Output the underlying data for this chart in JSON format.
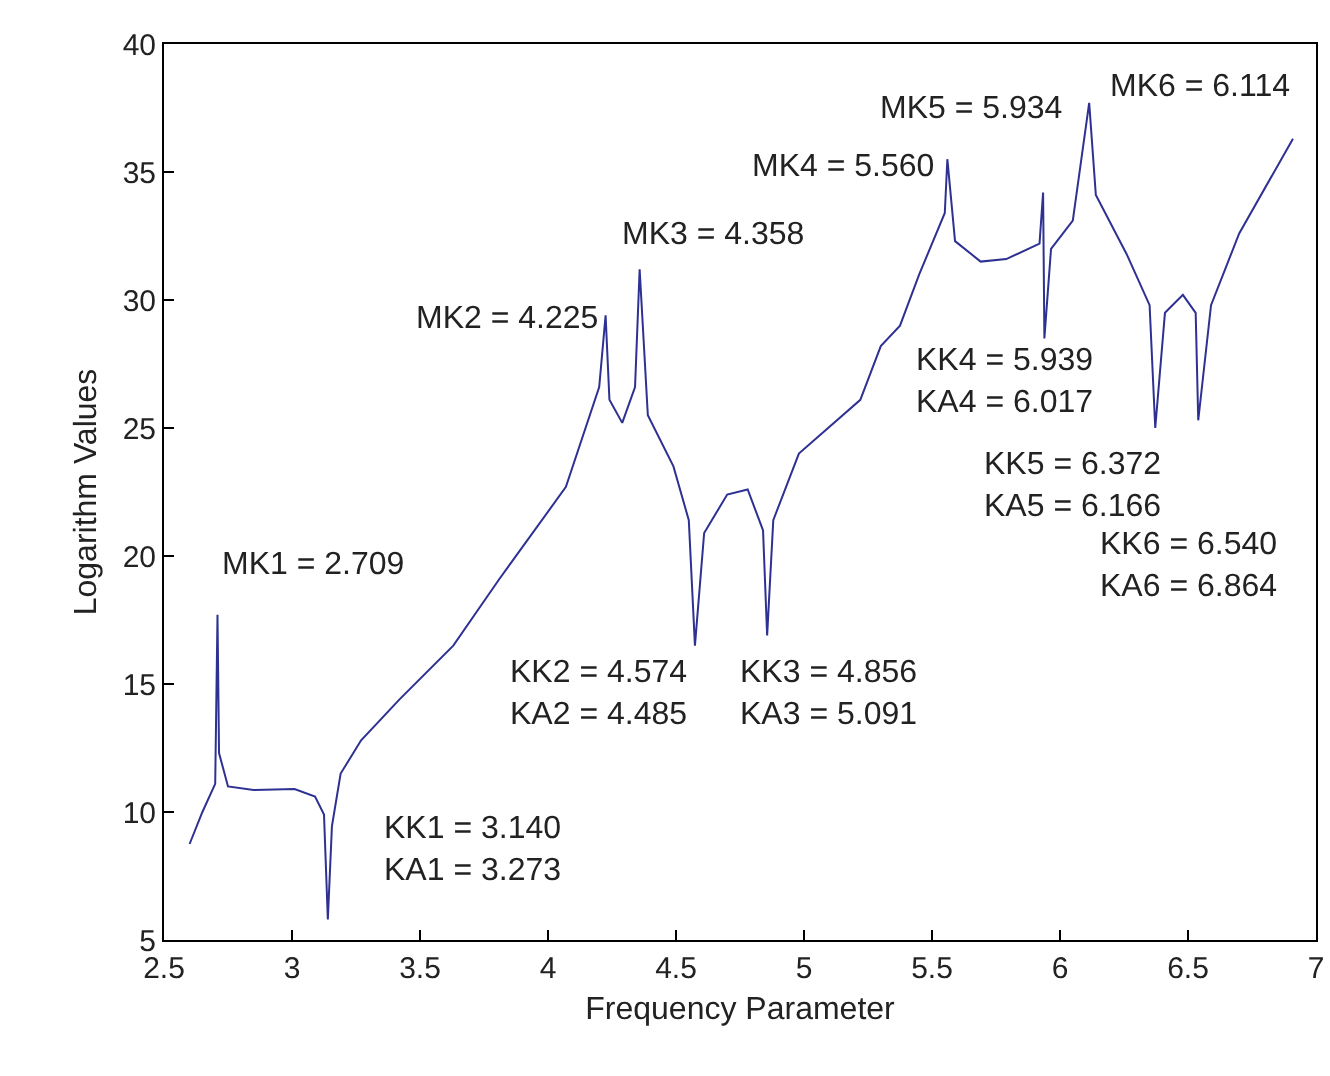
{
  "chart_data": {
    "type": "line",
    "xlabel": "Frequency Parameter",
    "ylabel": "Logarithm Values",
    "xlim": [
      2.5,
      7
    ],
    "xticks": [
      2.5,
      3,
      3.5,
      4,
      4.5,
      5,
      5.5,
      6,
      6.5,
      7
    ],
    "ylim": [
      5,
      40
    ],
    "yticks": [
      5,
      10,
      15,
      20,
      25,
      30,
      35,
      40
    ],
    "grid": false,
    "marker": "none",
    "line_style": "solid",
    "series": [
      {
        "color": "#2e3192",
        "x": [
          2.6,
          2.65,
          2.7,
          2.709,
          2.715,
          2.75,
          2.85,
          3.01,
          3.09,
          3.125,
          3.14,
          3.156,
          3.19,
          3.27,
          3.42,
          3.63,
          3.81,
          4.07,
          4.2,
          4.225,
          4.24,
          4.29,
          4.34,
          4.358,
          4.39,
          4.49,
          4.55,
          4.574,
          4.61,
          4.7,
          4.78,
          4.84,
          4.856,
          4.88,
          4.98,
          5.22,
          5.3,
          5.375,
          5.45,
          5.55,
          5.56,
          5.59,
          5.69,
          5.79,
          5.92,
          5.934,
          5.939,
          5.965,
          6.05,
          6.114,
          6.14,
          6.26,
          6.35,
          6.372,
          6.41,
          6.48,
          6.53,
          6.54,
          6.59,
          6.7,
          6.91
        ],
        "values": [
          8.75,
          10,
          11.1,
          17.7,
          12.3,
          11,
          10.86,
          10.9,
          10.6,
          9.9,
          5.8,
          9.45,
          11.5,
          12.8,
          14.4,
          16.5,
          19.1,
          22.7,
          26.6,
          29.4,
          26.1,
          25.2,
          26.6,
          31.2,
          25.5,
          23.5,
          21.4,
          16.5,
          20.9,
          22.4,
          22.6,
          21,
          16.9,
          21.4,
          24,
          26.1,
          28.2,
          29,
          31,
          33.4,
          35.5,
          32.3,
          31.5,
          31.6,
          32.2,
          34.2,
          28.5,
          32,
          33.1,
          37.7,
          34.1,
          31.8,
          29.8,
          25,
          29.5,
          30.2,
          29.5,
          25.3,
          29.8,
          32.6,
          36.3
        ]
      }
    ],
    "annotations": [
      {
        "text": "MK1 = 2.709",
        "x": 2.709,
        "y": 17.7
      },
      {
        "text": "KK1 = 3.140\nKA1 = 3.273",
        "x": 3.14,
        "y": 5.8
      },
      {
        "text": "MK2 = 4.225",
        "x": 4.225,
        "y": 29.4
      },
      {
        "text": "MK3 = 4.358",
        "x": 4.358,
        "y": 31.2
      },
      {
        "text": "KK2 = 4.574\nKA2 = 4.485",
        "x": 4.574,
        "y": 16.5
      },
      {
        "text": "KK3 = 4.856\nKA3 = 5.091",
        "x": 4.856,
        "y": 16.9
      },
      {
        "text": "MK4 = 5.560",
        "x": 5.56,
        "y": 35.5
      },
      {
        "text": "MK5 = 5.934",
        "x": 5.934,
        "y": 34.2
      },
      {
        "text": "MK6 = 6.114",
        "x": 6.114,
        "y": 37.7
      },
      {
        "text": "KK4 = 5.939\nKA4 = 6.017",
        "x": 5.939,
        "y": 28.5
      },
      {
        "text": "KK5 = 6.372\nKA5 = 6.166",
        "x": 6.372,
        "y": 25
      },
      "KK6 = 6.540\nKA6 = 6.864"
    ]
  }
}
